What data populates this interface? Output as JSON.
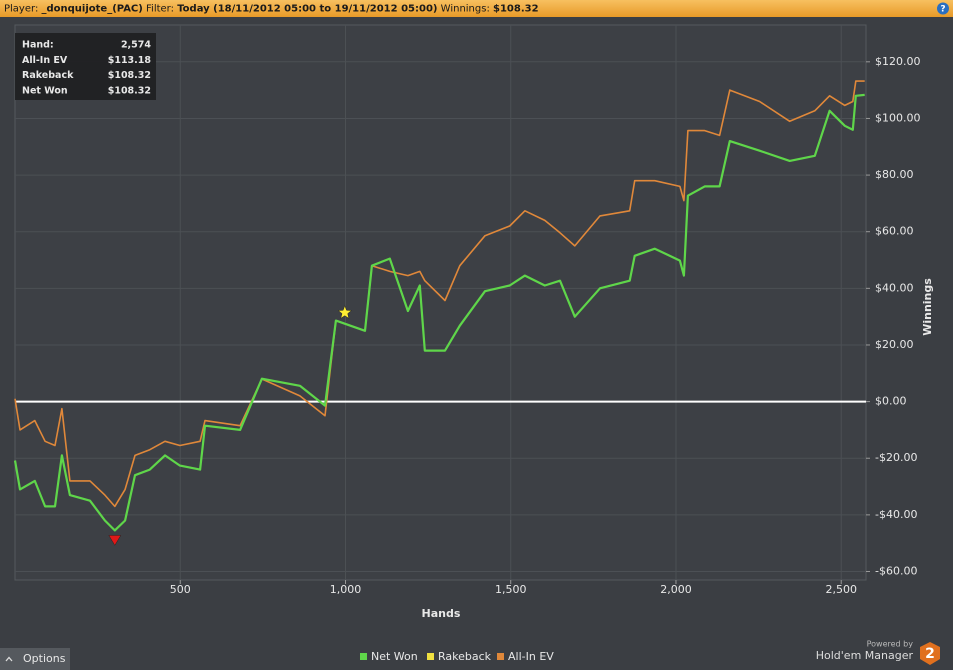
{
  "header": {
    "player_label": "Player:",
    "player": "_donquijote_(PAC)",
    "filter_label": "Filter:",
    "filter": "Today (18/11/2012 05:00 to 19/11/2012 05:00)",
    "winnings_label": "Winnings:",
    "winnings": "$108.32",
    "help": "?"
  },
  "stats_box": {
    "rows": [
      [
        "Hand:",
        "2,574"
      ],
      [
        "All-In EV",
        "$113.18"
      ],
      [
        "Rakeback",
        "$108.32"
      ],
      [
        "Net Won",
        "$108.32"
      ]
    ]
  },
  "chart_data": {
    "type": "line",
    "x_label": "Hands",
    "y_label": "Winnings",
    "xlim": [
      0,
      2575
    ],
    "xticks": [
      500,
      {
        "value": 1000,
        "label": "1,000"
      },
      {
        "value": 1500,
        "label": "1,500"
      },
      {
        "value": 2000,
        "label": "2,000"
      },
      {
        "value": 2500,
        "label": "2,500"
      }
    ],
    "ylim": [
      -63,
      133
    ],
    "yticks": [
      {
        "value": -60,
        "label": "-$60.00"
      },
      {
        "value": -40,
        "label": "-$40.00"
      },
      {
        "value": -20,
        "label": "-$20.00"
      },
      {
        "value": 0,
        "label": "$0.00"
      },
      {
        "value": 20,
        "label": "$20.00"
      },
      {
        "value": 40,
        "label": "$40.00"
      },
      {
        "value": 60,
        "label": "$60.00"
      },
      {
        "value": 80,
        "label": "$80.00"
      },
      {
        "value": 100,
        "label": "$100.00"
      },
      {
        "value": 120,
        "label": "$120.00"
      }
    ],
    "grid": true,
    "zero_line": true,
    "x": [
      0,
      15,
      60,
      91,
      121,
      142,
      166,
      227,
      272,
      302,
      333,
      363,
      408,
      454,
      499,
      560,
      575,
      681,
      747,
      862,
      938,
      971,
      1059,
      1080,
      1134,
      1189,
      1225,
      1240,
      1301,
      1346,
      1422,
      1497,
      1543,
      1603,
      1649,
      1694,
      1770,
      1860,
      1875,
      1936,
      2012,
      2024,
      2036,
      2087,
      2132,
      2163,
      2253,
      2344,
      2420,
      2465,
      2511,
      2535,
      2544,
      2571
    ],
    "series": [
      {
        "name": "Net Won",
        "color": "#5fd64a",
        "values": [
          -20.8,
          -31,
          -28,
          -37,
          -37,
          -19,
          -33,
          -35,
          -42,
          -45.5,
          -42,
          -26,
          -24,
          -19,
          -22.6,
          -24,
          -8.5,
          -10,
          8.1,
          5.6,
          -1.4,
          28.6,
          25,
          48,
          50.5,
          32,
          41,
          18,
          18,
          26.8,
          39,
          41,
          44.5,
          41,
          42.7,
          30,
          40,
          42.7,
          51.5,
          54,
          49.8,
          44.5,
          72.7,
          76,
          76,
          92,
          88.6,
          85,
          86.8,
          102.7,
          97.4,
          96,
          108,
          108.32
        ]
      },
      {
        "name": "Rakeback",
        "color": "#f0e040",
        "values": [
          null,
          null,
          null,
          null,
          null,
          null,
          null,
          null,
          null,
          null,
          null,
          null,
          null,
          null,
          null,
          null,
          null,
          null,
          null,
          null,
          null,
          null,
          null,
          null,
          null,
          null,
          null,
          null,
          null,
          null,
          null,
          null,
          null,
          null,
          null,
          null,
          null,
          null,
          null,
          null,
          null,
          null,
          null,
          null,
          null,
          null,
          null,
          null,
          null,
          null,
          null,
          null,
          null,
          null
        ]
      },
      {
        "name": "All-In EV",
        "color": "#e0883a",
        "values": [
          1,
          -10,
          -6.7,
          -14,
          -15.5,
          -2.5,
          -28,
          -28,
          -33,
          -37,
          -31,
          -19,
          -17,
          -14,
          -15.5,
          -14,
          -6.7,
          -8.5,
          8,
          2,
          -5,
          28.6,
          25,
          48,
          46,
          44.5,
          46,
          42.7,
          35.7,
          48,
          58.6,
          62,
          67.4,
          64,
          59.6,
          55,
          65.6,
          67.4,
          78,
          78,
          76,
          71,
          95.7,
          95.7,
          94,
          110,
          106,
          99,
          102.7,
          108,
          104.6,
          106,
          113.18,
          113.18
        ]
      }
    ],
    "markers": [
      {
        "shape": "triangle-down",
        "color": "#e01818",
        "x": 302,
        "y": -49
      },
      {
        "shape": "star",
        "color": "#ffee33",
        "x": 998,
        "y": 31.4
      }
    ]
  },
  "footer": {
    "options": "Options",
    "powered_by": "Powered by",
    "brand": "Hold'em Manager",
    "logo": "2"
  }
}
